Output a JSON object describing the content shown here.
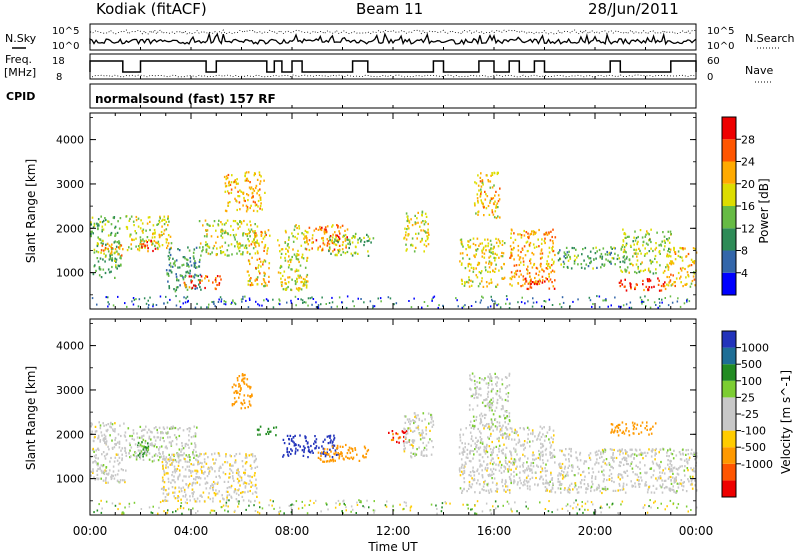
{
  "header": {
    "station": "Kodiak (fitACF)",
    "beam": "Beam 11",
    "date": "28/Jun/2011"
  },
  "top_panels": {
    "nsky_label": "N.Sky",
    "nsearch_label": "N.Search",
    "log_scale_top": "10^5",
    "log_scale_bottom": "10^0",
    "freq_label_1": "Freq.",
    "freq_label_2": "[MHz]",
    "freq_ticks": [
      "18",
      "8"
    ],
    "nave_label": "Nave",
    "nave_ticks": [
      "60",
      "0"
    ],
    "cpid_label": "CPID",
    "cpid_text": "normalsound (fast) 157 RF"
  },
  "colors": {
    "power_scale": [
      "#0000ff",
      "#3366aa",
      "#2e8b57",
      "#66bb44",
      "#dddd00",
      "#ffaa00",
      "#ff5500",
      "#ee0000"
    ],
    "velocity_scale": [
      "#2233bb",
      "#1e6e96",
      "#228b22",
      "#7ccd32",
      "#c8c8c8",
      "#c8c8c8",
      "#ffcc00",
      "#ff9900",
      "#ff5500",
      "#ee0000"
    ]
  },
  "chart_data": [
    {
      "type": "heatmap",
      "title": "Power",
      "ylabel": "Slant Range [km]",
      "xlabel": "Time UT",
      "x_ticks": [
        "00:00",
        "04:00",
        "08:00",
        "12:00",
        "16:00",
        "20:00",
        "00:00"
      ],
      "xlim_hours": [
        0,
        24
      ],
      "y_ticks": [
        1000,
        2000,
        3000,
        4000
      ],
      "ylim": [
        180,
        4600
      ],
      "colorbar_label": "Power [dB]",
      "colorbar_ticks": [
        "4",
        "8",
        "12",
        "16",
        "20",
        "24",
        "28"
      ],
      "colorbar_range": [
        0,
        32
      ],
      "echo_regions": [
        {
          "t0": 0.0,
          "t1": 1.2,
          "r0": 900,
          "r1": 2300,
          "dB": 13
        },
        {
          "t0": 0.4,
          "t1": 1.3,
          "r0": 1400,
          "r1": 1700,
          "dB": 22
        },
        {
          "t0": 1.4,
          "t1": 3.2,
          "r0": 1500,
          "r1": 2300,
          "dB": 18
        },
        {
          "t0": 2.0,
          "t1": 2.6,
          "r0": 1500,
          "r1": 1800,
          "dB": 27
        },
        {
          "t0": 3.0,
          "t1": 4.4,
          "r0": 600,
          "r1": 1600,
          "dB": 11
        },
        {
          "t0": 3.7,
          "t1": 5.2,
          "r0": 650,
          "r1": 950,
          "dB": 27
        },
        {
          "t0": 4.3,
          "t1": 6.6,
          "r0": 1400,
          "r1": 2200,
          "dB": 17
        },
        {
          "t0": 5.3,
          "t1": 6.9,
          "r0": 2400,
          "r1": 3300,
          "dB": 21
        },
        {
          "t0": 6.2,
          "t1": 7.1,
          "r0": 700,
          "r1": 2000,
          "dB": 20
        },
        {
          "t0": 7.4,
          "t1": 8.6,
          "r0": 600,
          "r1": 2100,
          "dB": 18
        },
        {
          "t0": 8.5,
          "t1": 10.2,
          "r0": 1500,
          "r1": 2100,
          "dB": 24
        },
        {
          "t0": 9.4,
          "t1": 11.2,
          "r0": 1400,
          "r1": 1900,
          "dB": 15
        },
        {
          "t0": 12.4,
          "t1": 13.4,
          "r0": 1500,
          "r1": 2400,
          "dB": 18
        },
        {
          "t0": 14.6,
          "t1": 16.4,
          "r0": 700,
          "r1": 1800,
          "dB": 19
        },
        {
          "t0": 15.2,
          "t1": 16.2,
          "r0": 2200,
          "r1": 3300,
          "dB": 20
        },
        {
          "t0": 16.6,
          "t1": 18.4,
          "r0": 700,
          "r1": 2000,
          "dB": 22
        },
        {
          "t0": 17.2,
          "t1": 18.4,
          "r0": 650,
          "r1": 900,
          "dB": 28
        },
        {
          "t0": 18.5,
          "t1": 21.0,
          "r0": 1100,
          "r1": 1600,
          "dB": 12
        },
        {
          "t0": 20.9,
          "t1": 22.8,
          "r0": 600,
          "r1": 900,
          "dB": 28
        },
        {
          "t0": 21.0,
          "t1": 23.0,
          "r0": 1000,
          "r1": 2000,
          "dB": 16
        },
        {
          "t0": 22.8,
          "t1": 24.0,
          "r0": 700,
          "r1": 1600,
          "dB": 20
        }
      ]
    },
    {
      "type": "heatmap",
      "title": "Velocity",
      "ylabel": "Slant Range [km]",
      "xlabel": "Time UT",
      "x_ticks": [
        "00:00",
        "04:00",
        "08:00",
        "12:00",
        "16:00",
        "20:00",
        "00:00"
      ],
      "xlim_hours": [
        0,
        24
      ],
      "y_ticks": [
        1000,
        2000,
        3000,
        4000
      ],
      "ylim": [
        180,
        4600
      ],
      "colorbar_label": "Velocity [m s^-1]",
      "colorbar_ticks": [
        "1000",
        "500",
        "100",
        "25",
        "-25",
        "-100",
        "-500",
        "-1000"
      ],
      "colorbar_range": [
        -1000,
        1000
      ],
      "echo_regions": [
        {
          "t0": 0.0,
          "t1": 1.4,
          "r0": 900,
          "r1": 2300,
          "v": 0
        },
        {
          "t0": 1.8,
          "t1": 2.4,
          "r0": 1500,
          "r1": 1900,
          "v": 300
        },
        {
          "t0": 1.4,
          "t1": 4.2,
          "r0": 1400,
          "r1": 2200,
          "v": 10
        },
        {
          "t0": 2.8,
          "t1": 6.6,
          "r0": 500,
          "r1": 1600,
          "v": -10
        },
        {
          "t0": 5.6,
          "t1": 6.4,
          "r0": 2600,
          "r1": 3400,
          "v": -300
        },
        {
          "t0": 6.6,
          "t1": 7.4,
          "r0": 2000,
          "r1": 2200,
          "v": 400
        },
        {
          "t0": 7.6,
          "t1": 9.8,
          "r0": 1500,
          "r1": 2000,
          "v": 700
        },
        {
          "t0": 9.0,
          "t1": 11.0,
          "r0": 1400,
          "r1": 1800,
          "v": -200
        },
        {
          "t0": 11.8,
          "t1": 12.6,
          "r0": 1800,
          "r1": 2100,
          "v": -500
        },
        {
          "t0": 12.4,
          "t1": 13.6,
          "r0": 1500,
          "r1": 2500,
          "v": 0
        },
        {
          "t0": 14.6,
          "t1": 18.4,
          "r0": 700,
          "r1": 2200,
          "v": 0
        },
        {
          "t0": 15.0,
          "t1": 16.6,
          "r0": 2200,
          "r1": 3400,
          "v": 10
        },
        {
          "t0": 18.5,
          "t1": 24.0,
          "r0": 700,
          "r1": 1700,
          "v": 0
        },
        {
          "t0": 20.6,
          "t1": 22.4,
          "r0": 2000,
          "r1": 2300,
          "v": -150
        }
      ]
    }
  ]
}
